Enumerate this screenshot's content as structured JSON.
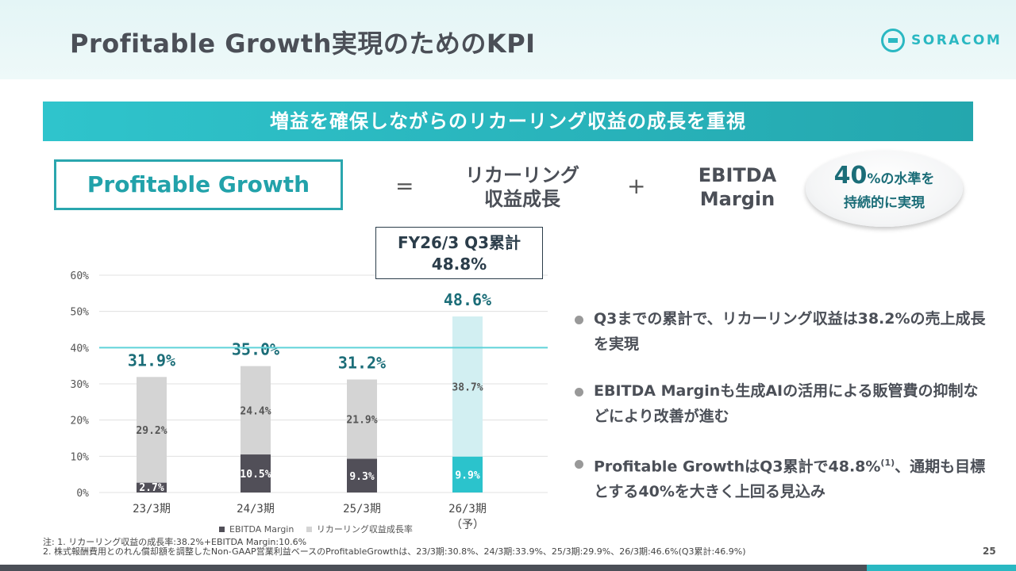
{
  "header": {
    "title": "Profitable Growth実現のためのKPI",
    "logo_text": "SORACOM"
  },
  "banner": "増益を確保しながらのリカーリング収益の成長を重視",
  "formula": {
    "left": "Profitable Growth",
    "equals": "=",
    "term1_line1": "リカーリング",
    "term1_line2": "収益成長",
    "plus": "+",
    "term2_line1": "EBITDA",
    "term2_line2": "Margin",
    "badge_big": "40",
    "badge_line1_rest": "%の水準を",
    "badge_line2": "持続的に実現"
  },
  "callout": {
    "line1": "FY26/3 Q3累計",
    "line2": "48.8%"
  },
  "chart_data": {
    "type": "bar",
    "stacked": true,
    "categories": [
      "23/3期",
      "24/3期",
      "25/3期",
      "26/3期"
    ],
    "category_sublabels": [
      "",
      "",
      "",
      "（予）"
    ],
    "series": [
      {
        "name": "EBITDA Margin",
        "values": [
          2.7,
          10.5,
          9.3,
          9.9
        ],
        "labels": [
          "2.7%",
          "10.5%",
          "9.3%",
          "9.9%"
        ]
      },
      {
        "name": "リカーリング収益成長率",
        "values": [
          29.2,
          24.4,
          21.9,
          38.7
        ],
        "labels": [
          "29.2%",
          "24.4%",
          "21.9%",
          "38.7%"
        ]
      }
    ],
    "totals": [
      "31.9%",
      "35.0%",
      "31.2%",
      "48.6%"
    ],
    "yticks": [
      0,
      10,
      20,
      30,
      40,
      50,
      60
    ],
    "ytick_labels": [
      "0%",
      "10%",
      "20%",
      "30%",
      "40%",
      "50%",
      "60%"
    ],
    "ylim": [
      0,
      60
    ],
    "reference_line": 40,
    "highlight_last": true,
    "colors": {
      "ebitda": "#514f58",
      "recurring": "#d4d4d4",
      "forecast_ebitda": "#2bc3cc",
      "forecast_recurring": "#d2eff2",
      "reference": "#5fd3d9",
      "total_label": "#1b6d78",
      "grid": "#e0e0e0"
    }
  },
  "legend": {
    "marker": "■",
    "ebitda_label": "EBITDA Margin",
    "recurring_label": "リカーリング収益成長率"
  },
  "bullets": [
    {
      "text": "Q3までの累計で、リカーリング収益は38.2%の売上成長を実現",
      "sup": ""
    },
    {
      "text": "EBITDA Marginも生成AIの活用による販管費の抑制などにより改善が進む",
      "sup": ""
    },
    {
      "text": "Profitable GrowthはQ3累計で48.8%",
      "sup": "(1)",
      "text_after": "、通期も目標とする40%を大きく上回る見込み"
    }
  ],
  "notes": {
    "line1": "注:  1. リカーリング収益の成長率:38.2%+EBITDA Margin:10.6%",
    "line2": "2. 株式報酬費用とのれん償却額を調整したNon-GAAP営業利益ベースのProfitableGrowthは、23/3期:30.8%、24/3期:33.9%、25/3期:29.9%、26/3期:46.6%(Q3累計:46.9%)"
  },
  "page_number": "25"
}
